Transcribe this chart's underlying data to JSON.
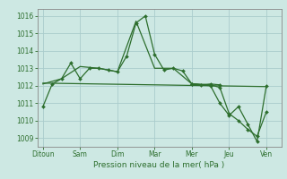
{
  "background_color": "#cde8e3",
  "grid_color": "#aacccc",
  "line_color": "#2d6e2d",
  "marker_color": "#2d6e2d",
  "xlabel": "Pression niveau de la mer( hPa )",
  "ylim": [
    1008.5,
    1016.4
  ],
  "yticks": [
    1009,
    1010,
    1011,
    1012,
    1013,
    1014,
    1015,
    1016
  ],
  "xtick_labels": [
    "Ditoun",
    "Sam",
    "Dim",
    "Mar",
    "Mer",
    "Jeu",
    "Ven"
  ],
  "xtick_positions": [
    0,
    2,
    4,
    6,
    8,
    10,
    12
  ],
  "series": [
    {
      "x": [
        0,
        0.5,
        1,
        1.5,
        2,
        2.5,
        3,
        3.5,
        4,
        4.5,
        5,
        5.5,
        6,
        6.5,
        7,
        7.5,
        8,
        8.5,
        9,
        9.5
      ],
      "y": [
        1010.8,
        1012.1,
        1012.4,
        1013.3,
        1012.4,
        1013.0,
        1013.0,
        1012.9,
        1012.8,
        1013.7,
        1015.6,
        1016.0,
        1013.8,
        1012.9,
        1013.0,
        1012.85,
        1012.1,
        1012.05,
        1012.1,
        1012.05
      ]
    },
    {
      "x": [
        0,
        12
      ],
      "y": [
        1012.15,
        1011.95
      ]
    },
    {
      "x": [
        0,
        1,
        2,
        3,
        4,
        5,
        6,
        7,
        8,
        9
      ],
      "y": [
        1012.1,
        1012.4,
        1013.1,
        1013.0,
        1012.8,
        1015.7,
        1013.0,
        1013.0,
        1012.1,
        1012.05
      ]
    },
    {
      "x": [
        8,
        9,
        9.5,
        10,
        10.5,
        11,
        11.5,
        12
      ],
      "y": [
        1012.1,
        1012.0,
        1011.0,
        1010.3,
        1010.8,
        1009.8,
        1008.8,
        1012.0
      ]
    },
    {
      "x": [
        8,
        9,
        9.5,
        10,
        10.5,
        11,
        11.5,
        12
      ],
      "y": [
        1012.1,
        1012.05,
        1011.9,
        1010.4,
        1010.0,
        1009.5,
        1009.1,
        1010.5
      ]
    }
  ]
}
